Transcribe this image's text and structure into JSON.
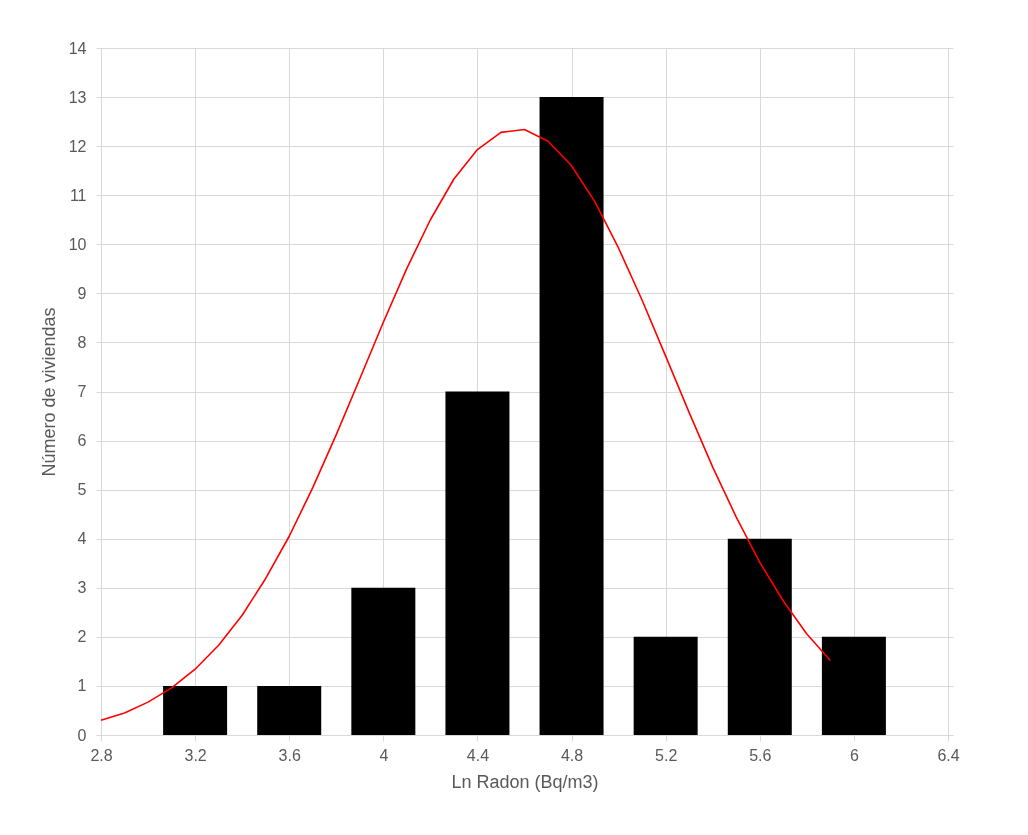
{
  "chart_data": {
    "type": "bar",
    "xlabel": "Ln Radon (Bq/m3)",
    "ylabel": "Número de viviendas",
    "x": [
      3.2,
      3.6,
      4.0,
      4.4,
      4.8,
      5.2,
      5.6,
      6.0
    ],
    "series": [
      {
        "color": "#000000",
        "values": [
          1,
          1,
          3,
          7,
          13,
          2,
          4,
          2
        ]
      },
      {
        "type": "line",
        "color": "#ff0000",
        "x": [
          2.8,
          2.9,
          3.0,
          3.1,
          3.2,
          3.3,
          3.4,
          3.5,
          3.6,
          3.7,
          3.8,
          3.9,
          4.0,
          4.1,
          4.2,
          4.3,
          4.4,
          4.5,
          4.6,
          4.7,
          4.8,
          4.9,
          5.0,
          5.1,
          5.2,
          5.3,
          5.4,
          5.5,
          5.6,
          5.7,
          5.8,
          5.9
        ],
        "values": [
          0.3,
          0.45,
          0.67,
          0.96,
          1.34,
          1.83,
          2.44,
          3.19,
          4.05,
          5.04,
          6.12,
          7.26,
          8.41,
          9.51,
          10.5,
          11.33,
          11.93,
          12.28,
          12.34,
          12.1,
          11.6,
          10.86,
          9.92,
          8.86,
          7.72,
          6.57,
          5.46,
          4.44,
          3.52,
          2.73,
          2.06,
          1.52
        ]
      }
    ],
    "xlim": [
      2.8,
      6.4
    ],
    "xticks": [
      2.8,
      3.2,
      3.6,
      4,
      4.4,
      4.8,
      5.2,
      5.6,
      6,
      6.4
    ],
    "ylim": [
      0,
      14
    ],
    "yticks": [
      0,
      1,
      2,
      3,
      4,
      5,
      6,
      7,
      8,
      9,
      10,
      11,
      12,
      13,
      14
    ],
    "grid": true,
    "marker": "none",
    "line_style": "solid"
  }
}
